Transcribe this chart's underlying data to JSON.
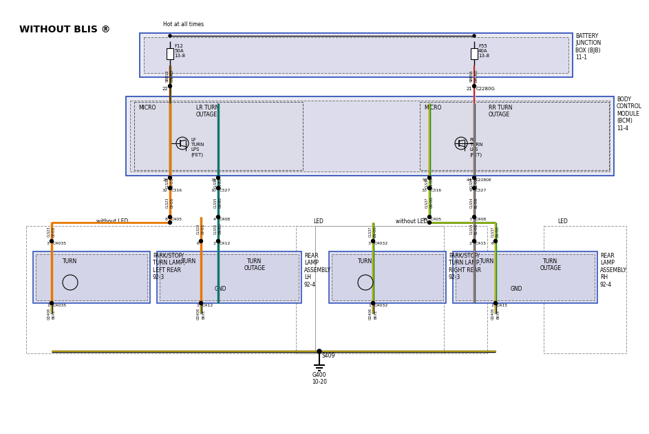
{
  "title": "WITHOUT BLIS ®",
  "bg_color": "#ffffff",
  "bjb_label": "BATTERY\nJUNCTION\nBOX (BJB)\n11-1",
  "bcm_label": "BODY\nCONTROL\nMODULE\n(BCM)\n11-4",
  "hot_at_all_times": "Hot at all times",
  "colors": {
    "black": "#111111",
    "orange": "#e87800",
    "green": "#1a8a1a",
    "blue": "#1060cc",
    "yellow": "#d4b800",
    "red": "#cc0000",
    "gray": "#888888",
    "dark_yellow": "#c8a000"
  }
}
